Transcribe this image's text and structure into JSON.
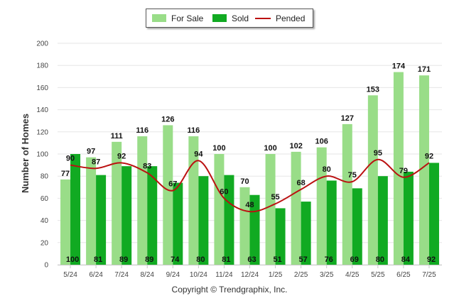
{
  "chart_data": {
    "type": "bar",
    "title": "",
    "xlabel": "",
    "ylabel": "Number of Homes",
    "ylim": [
      0,
      200
    ],
    "yticks": [
      0,
      20,
      40,
      60,
      80,
      100,
      120,
      140,
      160,
      180,
      200
    ],
    "categories": [
      "5/24",
      "6/24",
      "7/24",
      "8/24",
      "9/24",
      "10/24",
      "11/24",
      "12/24",
      "1/25",
      "2/25",
      "3/25",
      "4/25",
      "5/25",
      "6/25",
      "7/25"
    ],
    "series": [
      {
        "name": "For Sale",
        "kind": "bar",
        "color": "#99dd88",
        "values": [
          77,
          97,
          111,
          116,
          126,
          116,
          100,
          70,
          100,
          102,
          106,
          127,
          153,
          174,
          171
        ]
      },
      {
        "name": "Sold",
        "kind": "bar",
        "color": "#11aa22",
        "values": [
          100,
          81,
          89,
          89,
          74,
          80,
          81,
          63,
          51,
          57,
          76,
          69,
          80,
          84,
          92
        ]
      },
      {
        "name": "Pended",
        "kind": "line",
        "color": "#bb1111",
        "values": [
          90,
          87,
          92,
          83,
          67,
          94,
          60,
          48,
          55,
          68,
          80,
          75,
          95,
          79,
          92
        ]
      }
    ],
    "grid": true,
    "legend_position": "top-center"
  },
  "legend": {
    "for_sale_label": "For Sale",
    "sold_label": "Sold",
    "pended_label": "Pended"
  },
  "footer": {
    "copyright": "Copyright © Trendgraphix, Inc."
  }
}
